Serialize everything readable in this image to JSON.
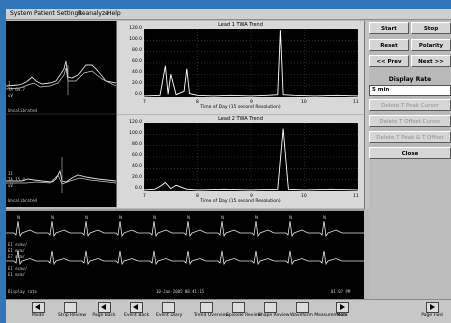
{
  "menu": [
    "System",
    "Patient Settings",
    "Reanalyze",
    "Help"
  ],
  "lead1_trend": {
    "title": "Lead 1 TWA Trend",
    "xlabel": "Time of Day (15 second Resolution)",
    "yticks": [
      "120.0",
      "100.0",
      "80.0",
      "60.0",
      "40.0",
      "20.0",
      "0.0"
    ],
    "xticks": [
      "7",
      "8",
      "9",
      "10",
      "11"
    ]
  },
  "lead2_trend": {
    "title": "Lead 2 TWA Trend",
    "xlabel": "Time of Day (15 second Resolution)",
    "yticks": [
      "120.0",
      "100.0",
      "80.0",
      "60.0",
      "40.0",
      "20.0",
      "0.0"
    ],
    "xticks": [
      "7",
      "8",
      "9",
      "10",
      "11"
    ]
  },
  "chart_data": [
    {
      "type": "line",
      "title": "Lead 1 TWA Trend",
      "xlabel": "Time of Day (15 second Resolution)",
      "ylim": [
        0,
        120
      ],
      "xlim": [
        7,
        11
      ],
      "series": [
        {
          "x": [
            7.0,
            7.3,
            7.4,
            7.45,
            7.5,
            7.6,
            7.75,
            7.8,
            7.85,
            8.0,
            8.3,
            8.6,
            9.0,
            9.3,
            9.5,
            9.55,
            9.6,
            9.8,
            10.2,
            10.6,
            11.0
          ],
          "values": [
            2,
            3,
            55,
            5,
            40,
            4,
            10,
            50,
            6,
            3,
            2,
            3,
            2,
            3,
            4,
            118,
            4,
            3,
            2,
            3,
            2
          ]
        }
      ]
    },
    {
      "type": "line",
      "title": "Lead 2 TWA Trend",
      "xlabel": "Time of Day (15 second Resolution)",
      "ylim": [
        0,
        120
      ],
      "xlim": [
        7,
        11
      ],
      "series": [
        {
          "x": [
            7.0,
            7.2,
            7.3,
            7.4,
            7.5,
            7.6,
            7.8,
            8.0,
            8.5,
            9.0,
            9.5,
            9.6,
            9.7,
            10.0,
            10.5,
            11.0
          ],
          "values": [
            2,
            3,
            8,
            15,
            4,
            10,
            3,
            2,
            3,
            2,
            3,
            110,
            3,
            2,
            3,
            2
          ]
        }
      ]
    }
  ],
  "buttons": {
    "start": "Start",
    "stop": "Stop",
    "reset": "Reset",
    "polarity": "Polarity",
    "prev": "<< Prev",
    "next": "Next >>",
    "display_rate_label": "Display Rate",
    "display_rate_value": "5 min",
    "delete_peak": "Delete T Peak Cursor",
    "delete_offset": "Delete T Offset Cursor",
    "delete_both": "Delete T Peak & T Offset",
    "close": "Close"
  },
  "strip": {
    "timestamp": "10-Jan-2005 08:41:15",
    "time_right": "01:07 PM",
    "label_left": "Display rate"
  },
  "toolbar": [
    "Mode",
    "Strip Review",
    "Page Back",
    "Event Back",
    "Event Diary",
    "Trend Overview",
    "Episode Review",
    "Shape Review",
    "Waveform Measurements",
    "More",
    "Page Fwd"
  ]
}
